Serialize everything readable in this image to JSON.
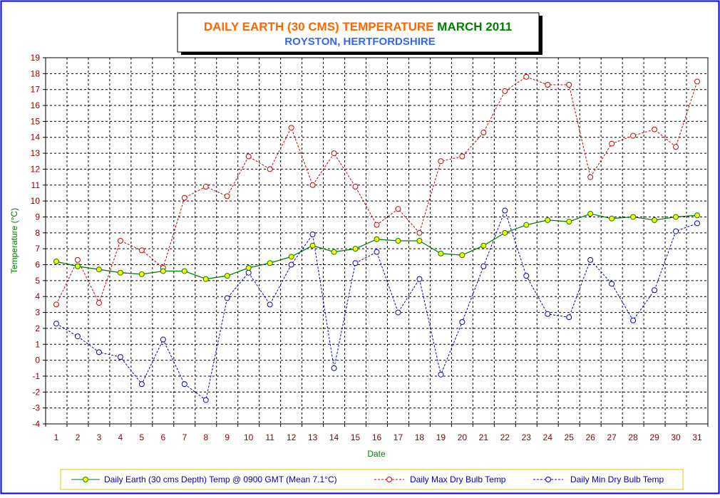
{
  "chart_data": {
    "type": "line",
    "title_part1": "DAILY EARTH (30 CMS) TEMPERATURE",
    "title_part2": "MARCH 2011",
    "subtitle": "ROYSTON, HERTFORDSHIRE",
    "xlabel": "Date",
    "ylabel": "Temperature (°C)",
    "ylim": [
      -4,
      19
    ],
    "grid": true,
    "legend_position": "bottom",
    "x": [
      1,
      2,
      3,
      4,
      5,
      6,
      7,
      8,
      9,
      10,
      11,
      12,
      13,
      14,
      15,
      16,
      17,
      18,
      19,
      20,
      21,
      22,
      23,
      24,
      25,
      26,
      27,
      28,
      29,
      30,
      31
    ],
    "series": [
      {
        "name": "Daily Earth (30 cms Depth) Temp @ 0900 GMT (Mean 7.1°C)",
        "color": "#008000",
        "marker_fill": "#ffff00",
        "style": "solid",
        "values": [
          6.2,
          5.9,
          5.7,
          5.5,
          5.4,
          5.6,
          5.6,
          5.1,
          5.3,
          5.8,
          6.1,
          6.5,
          7.2,
          6.8,
          7.0,
          7.6,
          7.5,
          7.5,
          6.7,
          6.6,
          7.2,
          8.0,
          8.5,
          8.8,
          8.7,
          9.2,
          8.9,
          9.0,
          8.8,
          9.0,
          9.1
        ]
      },
      {
        "name": "Daily Max Dry Bulb Temp",
        "color": "#cc0000",
        "marker_fill": "#ffffff",
        "style": "dashed",
        "values": [
          3.5,
          6.3,
          3.6,
          7.5,
          6.9,
          5.8,
          10.2,
          10.9,
          10.3,
          12.8,
          12.0,
          14.6,
          11.0,
          13.0,
          10.9,
          8.5,
          9.5,
          8.0,
          12.5,
          12.8,
          14.3,
          16.9,
          17.8,
          17.3,
          17.3,
          11.5,
          13.6,
          14.1,
          14.5,
          13.4,
          17.5
        ]
      },
      {
        "name": "Daily Min Dry Bulb Temp",
        "color": "#0000cc",
        "marker_fill": "#ffffff",
        "style": "dashed",
        "values": [
          2.3,
          1.5,
          0.5,
          0.2,
          -1.5,
          1.3,
          -1.5,
          -2.5,
          3.9,
          5.5,
          3.5,
          6.0,
          7.9,
          -0.5,
          6.1,
          6.8,
          3.0,
          5.1,
          -0.9,
          2.4,
          5.9,
          9.4,
          5.3,
          2.9,
          2.7,
          6.3,
          4.8,
          2.5,
          4.4,
          8.1,
          8.6
        ]
      }
    ],
    "colors": {
      "frame_border": "#0000ff",
      "title_part1": "#ff6600",
      "title_part2": "#008000",
      "subtitle": "#3366ff",
      "tick_labels": "#8b0000",
      "axis_titles": "#008000",
      "legend_border": "#e6c800"
    }
  }
}
